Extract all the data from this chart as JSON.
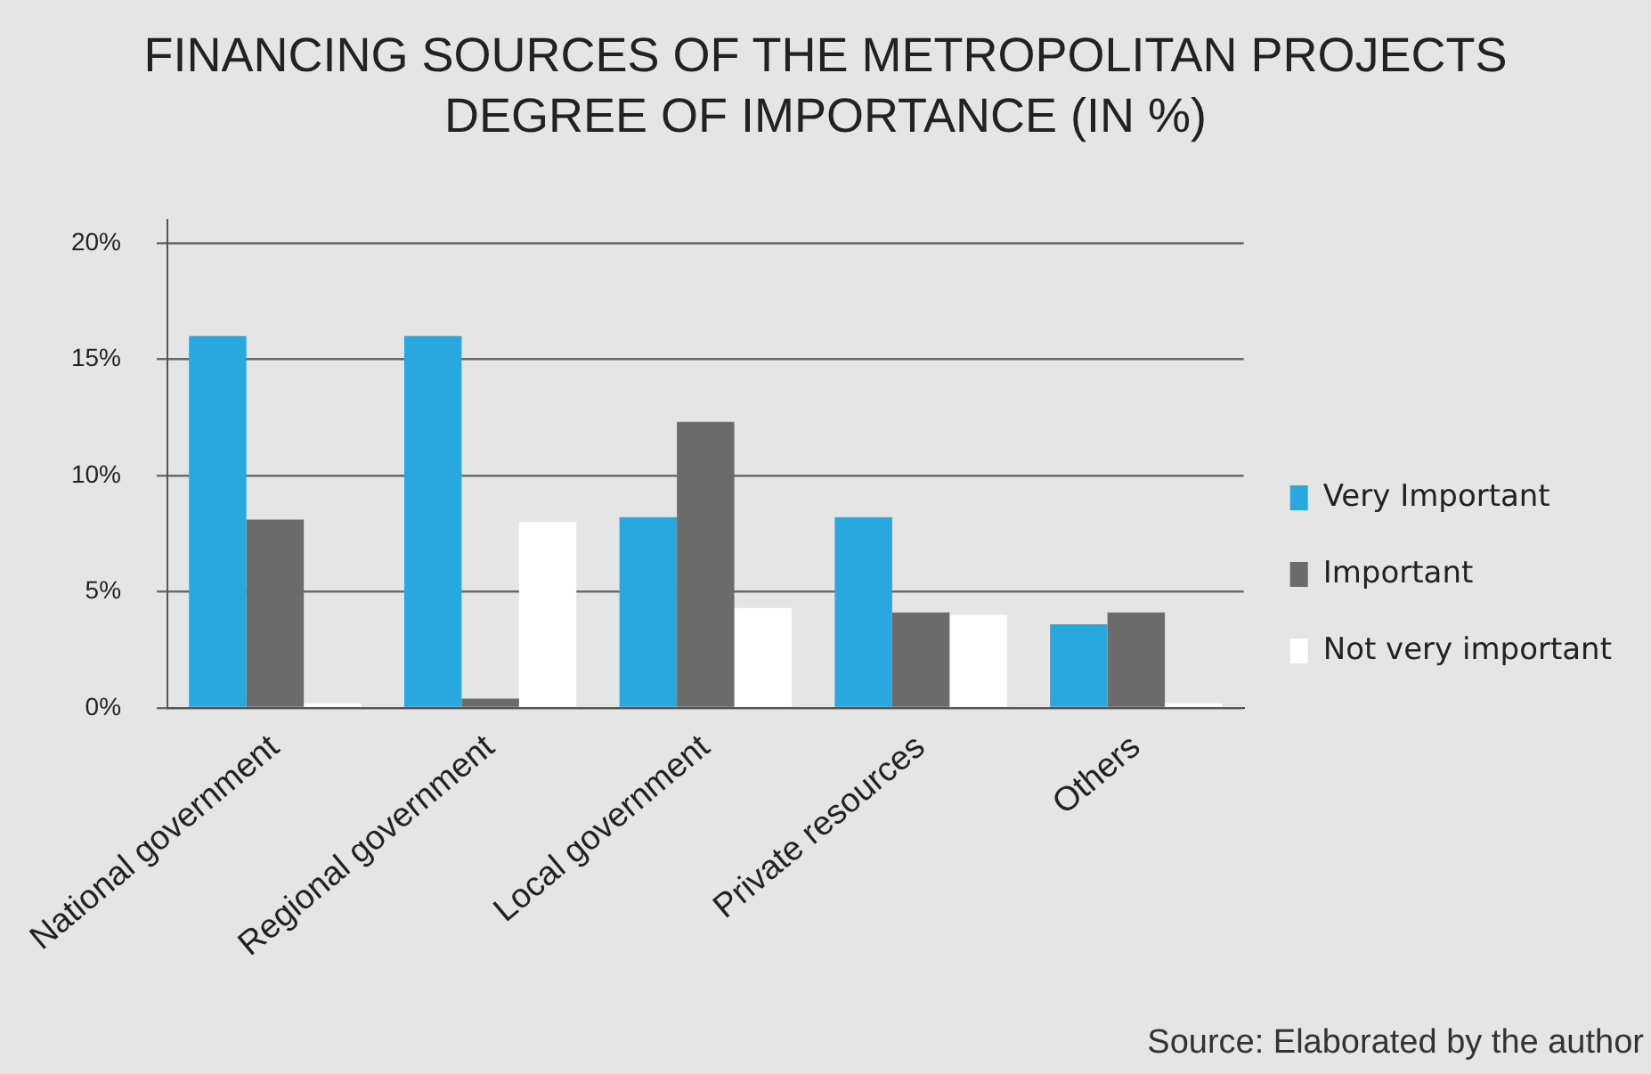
{
  "chart_data": {
    "type": "bar",
    "title": [
      "FINANCING SOURCES OF THE METROPOLITAN PROJECTS",
      "DEGREE OF IMPORTANCE (IN %)"
    ],
    "categories": [
      "National government",
      "Regional government",
      "Local government",
      "Private resources",
      "Others"
    ],
    "series": [
      {
        "name": "Very Important",
        "color": "#29a8e0",
        "values": [
          16,
          16,
          8.2,
          8.2,
          3.6
        ]
      },
      {
        "name": "Important",
        "color": "#6b6b6b",
        "values": [
          8.1,
          0.4,
          12.3,
          4.1,
          4.1
        ]
      },
      {
        "name": "Not very important",
        "color": "#ffffff",
        "values": [
          0.2,
          8,
          4.3,
          4,
          0.2
        ]
      }
    ],
    "ylim": [
      0,
      21
    ],
    "yticks": [
      {
        "value": 0,
        "label": "0%"
      },
      {
        "value": 5,
        "label": "5%"
      },
      {
        "value": 10,
        "label": "10%"
      },
      {
        "value": 15,
        "label": "15%"
      },
      {
        "value": 20,
        "label": "20%"
      }
    ],
    "grid": "y",
    "legend": "right",
    "annotations": [
      "Source: Elaborated by the author"
    ]
  }
}
